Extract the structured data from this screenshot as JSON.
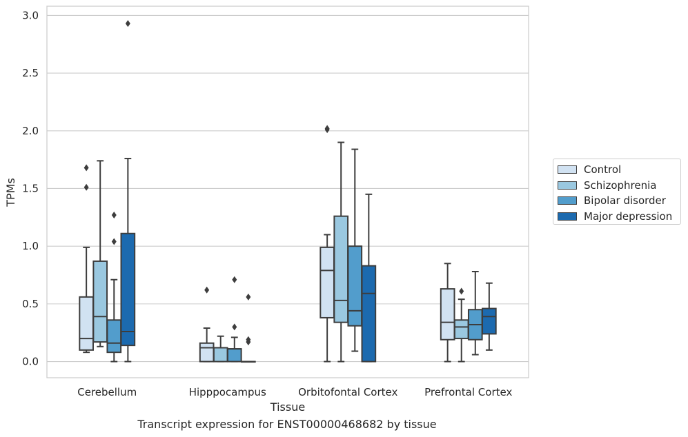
{
  "chart_data": {
    "type": "box",
    "title": "Transcript expression for ENST00000468682 by tissue",
    "xlabel": "Tissue",
    "ylabel": "TPMs",
    "ylim": [
      -0.14,
      3.08
    ],
    "yticks": [
      "0.0",
      "0.5",
      "1.0",
      "1.5",
      "2.0",
      "2.5",
      "3.0"
    ],
    "grid": "horizontal",
    "legend_placement": "right",
    "categories": [
      "Cerebellum",
      "Hipppocampus",
      "Orbitofontal Cortex",
      "Prefrontal Cortex"
    ],
    "series": [
      {
        "name": "Control",
        "color": "#d1e2f2",
        "boxes": [
          {
            "q1": 0.1,
            "median": 0.2,
            "q3": 0.56,
            "whisker_low": 0.08,
            "whisker_high": 0.99,
            "outliers": [
              1.51,
              1.68
            ]
          },
          {
            "q1": 0.0,
            "median": 0.12,
            "q3": 0.16,
            "whisker_low": 0.0,
            "whisker_high": 0.29,
            "outliers": [
              0.62
            ]
          },
          {
            "q1": 0.38,
            "median": 0.79,
            "q3": 0.99,
            "whisker_low": 0.0,
            "whisker_high": 1.1,
            "outliers": [
              2.01,
              2.02
            ]
          },
          {
            "q1": 0.19,
            "median": 0.34,
            "q3": 0.63,
            "whisker_low": 0.0,
            "whisker_high": 0.85,
            "outliers": []
          }
        ]
      },
      {
        "name": "Schizophrenia",
        "color": "#9ac8e0",
        "boxes": [
          {
            "q1": 0.17,
            "median": 0.39,
            "q3": 0.87,
            "whisker_low": 0.13,
            "whisker_high": 1.74,
            "outliers": []
          },
          {
            "q1": 0.0,
            "median": 0.12,
            "q3": 0.12,
            "whisker_low": 0.0,
            "whisker_high": 0.22,
            "outliers": []
          },
          {
            "q1": 0.34,
            "median": 0.53,
            "q3": 1.26,
            "whisker_low": 0.0,
            "whisker_high": 1.9,
            "outliers": []
          },
          {
            "q1": 0.2,
            "median": 0.3,
            "q3": 0.36,
            "whisker_low": 0.0,
            "whisker_high": 0.54,
            "outliers": [
              0.61
            ]
          }
        ]
      },
      {
        "name": "Bipolar disorder",
        "color": "#529dcc",
        "boxes": [
          {
            "q1": 0.08,
            "median": 0.16,
            "q3": 0.36,
            "whisker_low": 0.0,
            "whisker_high": 0.71,
            "outliers": [
              1.04,
              1.27
            ]
          },
          {
            "q1": 0.0,
            "median": 0.11,
            "q3": 0.11,
            "whisker_low": 0.0,
            "whisker_high": 0.21,
            "outliers": [
              0.3,
              0.71
            ]
          },
          {
            "q1": 0.31,
            "median": 0.44,
            "q3": 1.0,
            "whisker_low": 0.09,
            "whisker_high": 1.84,
            "outliers": []
          },
          {
            "q1": 0.19,
            "median": 0.32,
            "q3": 0.45,
            "whisker_low": 0.06,
            "whisker_high": 0.78,
            "outliers": []
          }
        ]
      },
      {
        "name": "Major depression",
        "color": "#1c6aaf",
        "boxes": [
          {
            "q1": 0.14,
            "median": 0.26,
            "q3": 1.11,
            "whisker_low": 0.0,
            "whisker_high": 1.76,
            "outliers": [
              2.93
            ]
          },
          {
            "q1": 0.0,
            "median": 0.0,
            "q3": 0.0,
            "whisker_low": 0.0,
            "whisker_high": 0.0,
            "outliers": [
              0.17,
              0.19,
              0.56
            ]
          },
          {
            "q1": 0.0,
            "median": 0.59,
            "q3": 0.83,
            "whisker_low": 0.0,
            "whisker_high": 1.45,
            "outliers": []
          },
          {
            "q1": 0.24,
            "median": 0.39,
            "q3": 0.46,
            "whisker_low": 0.1,
            "whisker_high": 0.68,
            "outliers": []
          }
        ]
      }
    ]
  }
}
